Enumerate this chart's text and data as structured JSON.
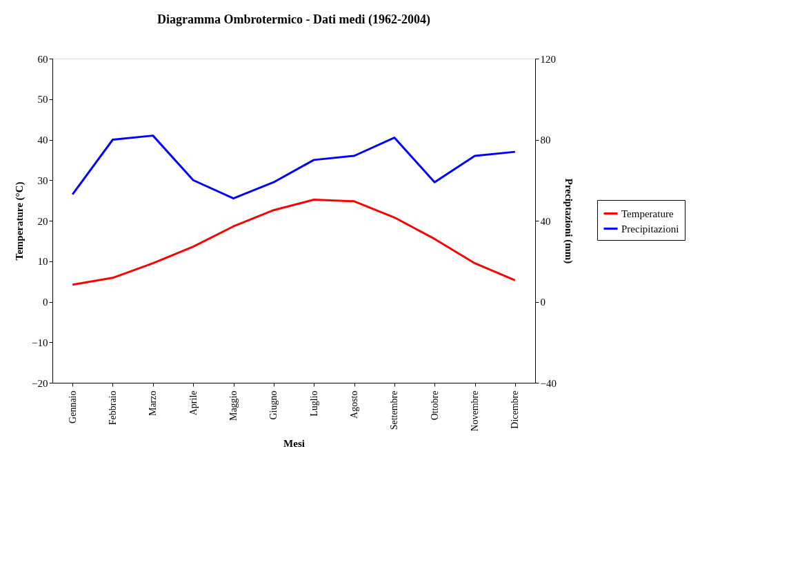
{
  "chart_data": {
    "type": "line",
    "title": "Diagramma Ombrotermico - Dati medi (1962-2004)",
    "xlabel": "Mesi",
    "ylabel": "Temperature (°C)",
    "y2label": "Preciptazioni (mm)",
    "categories": [
      "Gennaio",
      "Febbraio",
      "Marzo",
      "Aprile",
      "Maggio",
      "Giugno",
      "Luglio",
      "Agosto",
      "Settembre",
      "Ottobre",
      "Novembre",
      "Dicembre"
    ],
    "series": [
      {
        "name": "Temperature",
        "color": "#ff0000",
        "values": [
          4.2,
          5.9,
          9.5,
          13.6,
          18.6,
          22.6,
          25.2,
          24.8,
          20.8,
          15.5,
          9.5,
          5.3
        ]
      },
      {
        "name": "Precipitazioni",
        "color": "#0000ff",
        "axis": "y2",
        "values": [
          53,
          80,
          82,
          60,
          51,
          59,
          70,
          72,
          81,
          59,
          72,
          74
        ]
      }
    ],
    "ylim": [
      -20,
      60
    ],
    "yticks": [
      -20,
      -10,
      0,
      10,
      20,
      30,
      40,
      50,
      60
    ],
    "y2lim": [
      -40,
      120
    ],
    "y2ticks": [
      -40,
      0,
      40,
      80,
      120
    ],
    "grid": false,
    "legend": "right",
    "marker": "none",
    "line_style": "solid"
  }
}
